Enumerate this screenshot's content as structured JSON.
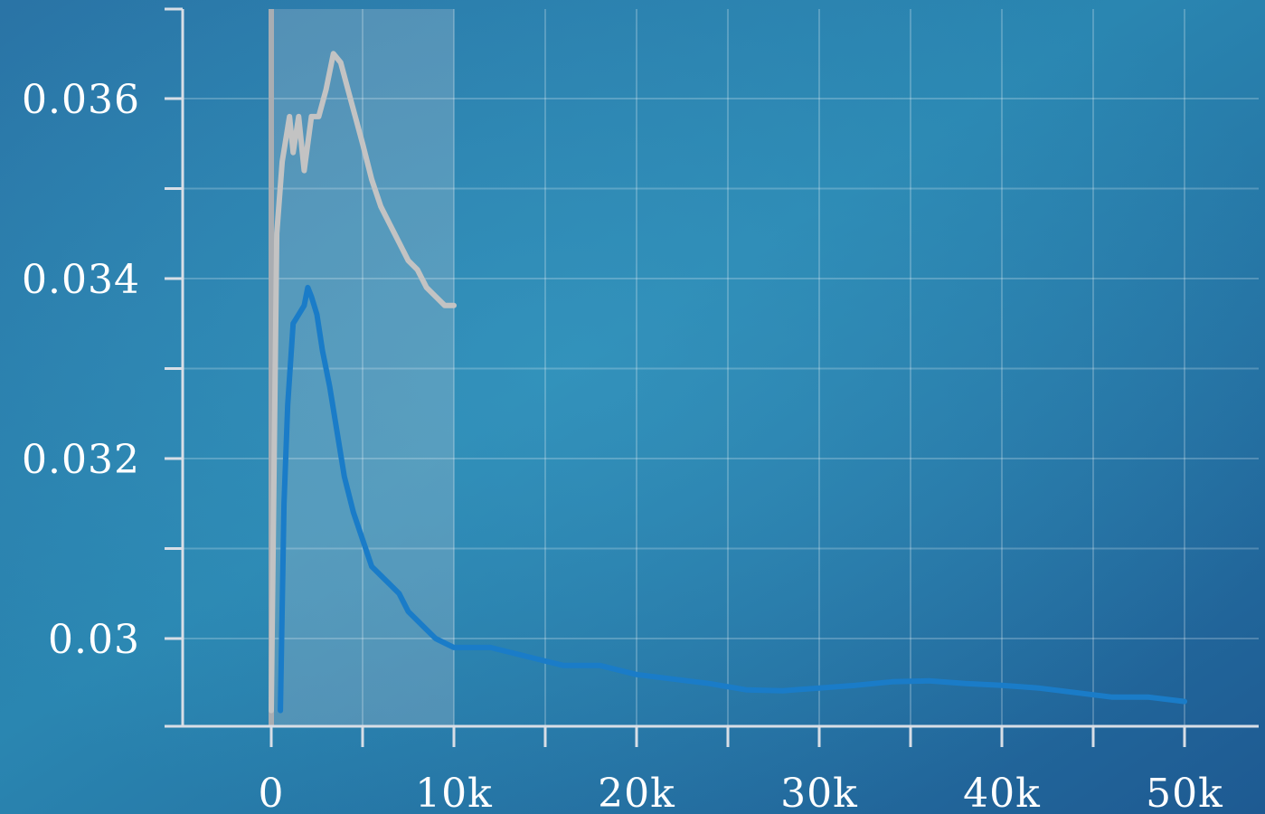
{
  "chart_data": {
    "type": "line",
    "title": "",
    "xlabel": "",
    "ylabel": "",
    "xlim": [
      -25000,
      50000
    ],
    "ylim": [
      0.0291,
      0.037
    ],
    "grid": true,
    "x_ticks": [
      {
        "value": 0,
        "label": "0"
      },
      {
        "value": 10000,
        "label": "10k"
      },
      {
        "value": 20000,
        "label": "20k"
      },
      {
        "value": 30000,
        "label": "30k"
      },
      {
        "value": 40000,
        "label": "40k"
      },
      {
        "value": 50000,
        "label": "50k"
      }
    ],
    "y_ticks": [
      {
        "value": 0.03,
        "label": "0.03"
      },
      {
        "value": 0.032,
        "label": "0.032"
      },
      {
        "value": 0.034,
        "label": "0.034"
      },
      {
        "value": 0.036,
        "label": "0.036"
      }
    ],
    "y_minor_ticks": [
      0.031,
      0.033,
      0.035
    ],
    "x_minor_ticks": [
      -5000,
      5000,
      15000,
      25000,
      35000,
      45000
    ],
    "highlight_region": {
      "x_start": 0,
      "x_end": 10000,
      "color": "#bfc7cf"
    },
    "series": [
      {
        "color": "#c3c3c3",
        "x": [
          0,
          300,
          600,
          1000,
          1200,
          1500,
          1800,
          2200,
          2600,
          3000,
          3400,
          3800,
          4200,
          4600,
          5000,
          5500,
          6000,
          6500,
          7000,
          7500,
          8000,
          8500,
          9000,
          9500,
          10000
        ],
        "y": [
          0.0292,
          0.0345,
          0.0353,
          0.0358,
          0.0354,
          0.0358,
          0.0352,
          0.0358,
          0.0358,
          0.0361,
          0.0365,
          0.0364,
          0.0361,
          0.0358,
          0.0355,
          0.0351,
          0.0348,
          0.0346,
          0.0344,
          0.0342,
          0.0341,
          0.0339,
          0.0338,
          0.0337,
          0.0337
        ]
      },
      {
        "color": "#1a7cc8",
        "x": [
          500,
          700,
          900,
          1200,
          1500,
          1800,
          2000,
          2200,
          2500,
          2800,
          3200,
          3600,
          4000,
          4500,
          5000,
          5500,
          6000,
          6500,
          7000,
          7500,
          8000,
          8500,
          9000,
          9500,
          10000,
          11000,
          12000,
          13000,
          14000,
          15000,
          16000,
          18000,
          20000,
          22000,
          24000,
          26000,
          28000,
          30000,
          32000,
          34000,
          36000,
          38000,
          40000,
          42000,
          44000,
          46000,
          48000,
          50000
        ],
        "y": [
          0.0292,
          0.0315,
          0.0326,
          0.0335,
          0.0336,
          0.0337,
          0.0339,
          0.0338,
          0.0336,
          0.0332,
          0.0328,
          0.0323,
          0.0318,
          0.0314,
          0.0311,
          0.0308,
          0.0307,
          0.0306,
          0.0305,
          0.0303,
          0.0302,
          0.0301,
          0.03,
          0.02995,
          0.0299,
          0.0299,
          0.0299,
          0.02985,
          0.0298,
          0.02975,
          0.0297,
          0.0297,
          0.0296,
          0.02955,
          0.0295,
          0.02943,
          0.02942,
          0.02945,
          0.02948,
          0.02952,
          0.02953,
          0.0295,
          0.02948,
          0.02945,
          0.0294,
          0.02935,
          0.02935,
          0.0293
        ]
      }
    ]
  }
}
